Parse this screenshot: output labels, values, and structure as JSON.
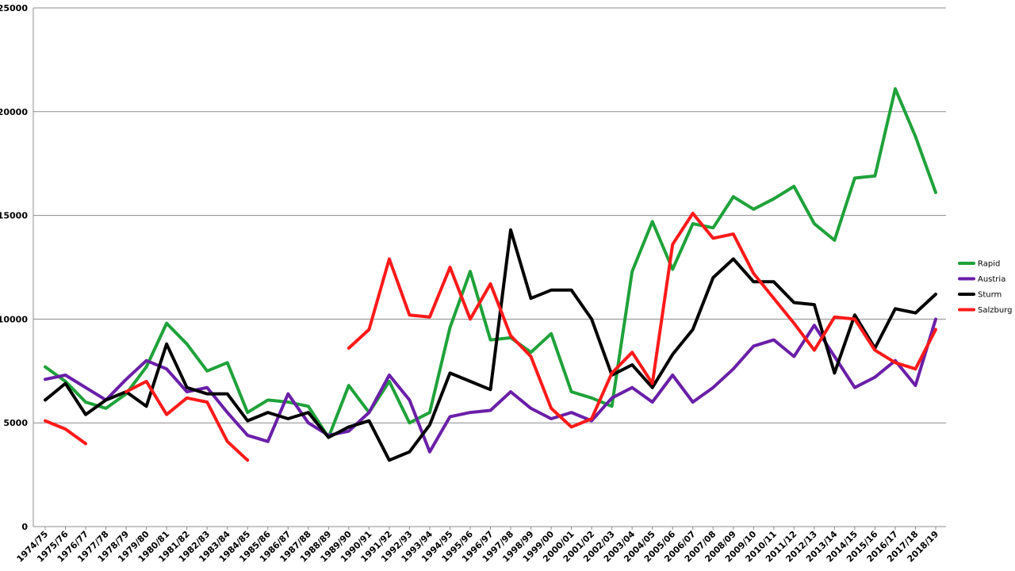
{
  "chart_data": {
    "type": "line",
    "title": "",
    "xlabel": "",
    "ylabel": "",
    "ylim": [
      0,
      25000
    ],
    "yticks": [
      0,
      5000,
      10000,
      15000,
      20000,
      25000
    ],
    "grid": true,
    "legend_position": "right",
    "categories": [
      "1974/75",
      "1975/76",
      "1976/77",
      "1977/78",
      "1978/79",
      "1979/80",
      "1980/81",
      "1981/82",
      "1982/83",
      "1983/84",
      "1984/85",
      "1985/86",
      "1986/87",
      "1987/88",
      "1988/89",
      "1989/90",
      "1990/91",
      "1991/92",
      "1992/93",
      "1993/94",
      "1994/95",
      "1995/96",
      "1996/97",
      "1997/98",
      "1998/99",
      "1999/00",
      "2000/01",
      "2001/02",
      "2002/03",
      "2003/04",
      "2004/05",
      "2005/06",
      "2006/07",
      "2007/08",
      "2008/09",
      "2009/10",
      "2010/11",
      "2011/12",
      "2012/13",
      "2013/14",
      "2014/15",
      "2015/16",
      "2016/17",
      "2017/18",
      "2018/19"
    ],
    "series": [
      {
        "name": "Rapid",
        "color": "#1fa23a",
        "values": [
          7700,
          7000,
          6000,
          5700,
          6400,
          7700,
          9800,
          8800,
          7500,
          7900,
          5500,
          6100,
          6000,
          5800,
          4300,
          6800,
          5500,
          7000,
          5000,
          5500,
          9600,
          12300,
          9000,
          9100,
          8400,
          9300,
          6500,
          6200,
          5800,
          12300,
          14700,
          12400,
          14600,
          14400,
          15900,
          15300,
          15800,
          16400,
          14600,
          13800,
          16800,
          16900,
          21100,
          18800,
          16100
        ]
      },
      {
        "name": "Austria",
        "color": "#6a1fa8",
        "values": [
          7100,
          7300,
          6700,
          6100,
          7100,
          8000,
          7600,
          6500,
          6700,
          5500,
          4400,
          4100,
          6400,
          5000,
          4400,
          4600,
          5500,
          7300,
          6100,
          3600,
          5300,
          5500,
          5600,
          6500,
          5700,
          5200,
          5500,
          5100,
          6200,
          6700,
          6000,
          7300,
          6000,
          6700,
          7600,
          8700,
          9000,
          8200,
          9700,
          8200,
          6700,
          7200,
          8000,
          6800,
          10000
        ]
      },
      {
        "name": "Sturm",
        "color": "#000000",
        "values": [
          6100,
          6900,
          5400,
          6100,
          6500,
          5800,
          8800,
          6700,
          6400,
          6400,
          5100,
          5500,
          5200,
          5500,
          4300,
          4800,
          5100,
          3200,
          3600,
          4900,
          7400,
          7000,
          6600,
          14300,
          11000,
          11400,
          11400,
          10000,
          7300,
          7800,
          6700,
          8300,
          9500,
          12000,
          12900,
          11800,
          11800,
          10800,
          10700,
          7400,
          10200,
          8600,
          10500,
          10300,
          11200
        ]
      },
      {
        "name": "Salzburg",
        "color": "#ff1a1a",
        "values": [
          5100,
          4700,
          4000,
          null,
          6500,
          7000,
          5400,
          6200,
          6000,
          4100,
          3200,
          null,
          null,
          null,
          null,
          8600,
          9500,
          12900,
          10200,
          10100,
          12500,
          10000,
          11700,
          9200,
          8200,
          5700,
          4800,
          5200,
          7400,
          8400,
          6900,
          13600,
          15100,
          13900,
          14100,
          12200,
          11000,
          9800,
          8500,
          10100,
          10000,
          8500,
          7900,
          7600,
          9500
        ]
      }
    ]
  }
}
